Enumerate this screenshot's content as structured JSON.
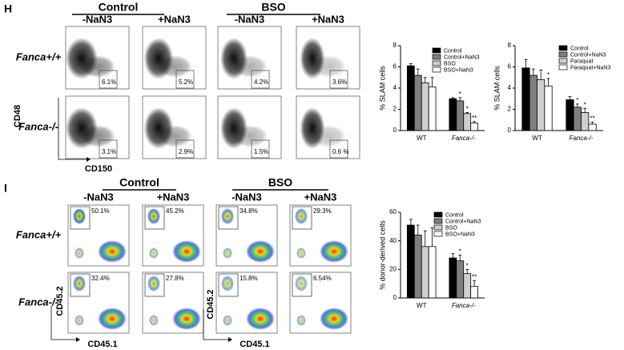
{
  "panel_h": {
    "label": "H",
    "groups": [
      "Control",
      "BSO"
    ],
    "conditions": [
      "-NaN3",
      "+NaN3",
      "-NaN3",
      "+NaN3"
    ],
    "rows": [
      "Fanca+/+",
      "Fanca-/-"
    ],
    "percents": [
      [
        "6.1%",
        "5.2%",
        "4.2%",
        "3.6%"
      ],
      [
        "3.1%",
        "2.9%",
        "1.5%",
        "0.6 %"
      ]
    ],
    "x_axis": "CD150",
    "y_axis": "CD48"
  },
  "panel_i": {
    "label": "I",
    "groups": [
      "Control",
      "BSO"
    ],
    "conditions": [
      "-NaN3",
      "+NaN3",
      "-NaN3",
      "+NaN3"
    ],
    "rows": [
      "Fanca+/+",
      "Fanca-/-"
    ],
    "percents": [
      [
        "50.1%",
        "45.2%",
        "34.8%",
        "29.3%"
      ],
      [
        "32.4%",
        "27.8%",
        "15.8%",
        "6.54%"
      ]
    ],
    "x_axis": "CD45.1",
    "y_axis": "CD45.2"
  },
  "chart_data": [
    {
      "type": "bar",
      "y_label": "% SLAM cells",
      "categories": [
        "WT",
        "Fanca-/-"
      ],
      "ylim": [
        0,
        8
      ],
      "yticks": [
        0,
        2,
        4,
        6,
        8
      ],
      "series": [
        {
          "name": "Control",
          "color": "#000000",
          "values": [
            6.1,
            3.0
          ],
          "errors": [
            0.2,
            0.1
          ],
          "stars": [
            null,
            null
          ]
        },
        {
          "name": "Control+NaN3",
          "color": "#7f7f7f",
          "values": [
            5.2,
            2.8
          ],
          "errors": [
            0.6,
            0.3
          ],
          "stars": [
            null,
            "*"
          ]
        },
        {
          "name": "BSO",
          "color": "#cfcfcf",
          "values": [
            4.5,
            1.6
          ],
          "errors": [
            0.5,
            0.1
          ],
          "stars": [
            null,
            "*"
          ]
        },
        {
          "name": "BSO+NaN3",
          "color": "#ffffff",
          "values": [
            4.1,
            0.7
          ],
          "errors": [
            0.9,
            0.15
          ],
          "stars": [
            null,
            "**"
          ]
        }
      ]
    },
    {
      "type": "bar",
      "y_label": "% SLAM cells",
      "categories": [
        "WT",
        "Fanca-/-"
      ],
      "ylim": [
        0,
        8
      ],
      "yticks": [
        0,
        2,
        4,
        6,
        8
      ],
      "series": [
        {
          "name": "Control",
          "color": "#000000",
          "values": [
            5.9,
            2.9
          ],
          "errors": [
            0.8,
            0.3
          ],
          "stars": [
            null,
            null
          ]
        },
        {
          "name": "Control+NaN3",
          "color": "#7f7f7f",
          "values": [
            5.2,
            2.2
          ],
          "errors": [
            0.6,
            0.3
          ],
          "stars": [
            null,
            "*"
          ]
        },
        {
          "name": "Paraquat",
          "color": "#cfcfcf",
          "values": [
            4.8,
            1.7
          ],
          "errors": [
            0.9,
            0.4
          ],
          "stars": [
            null,
            "*"
          ]
        },
        {
          "name": "Paraquat+NaN3",
          "color": "#ffffff",
          "values": [
            4.2,
            0.6
          ],
          "errors": [
            0.7,
            0.2
          ],
          "stars": [
            "*",
            "**"
          ]
        }
      ]
    },
    {
      "type": "bar",
      "y_label": "% donor-derived cells",
      "categories": [
        "WT",
        "Fanca-/-"
      ],
      "ylim": [
        0,
        60
      ],
      "yticks": [
        0,
        20,
        40,
        60
      ],
      "series": [
        {
          "name": "Control",
          "color": "#000000",
          "values": [
            51,
            28
          ],
          "errors": [
            4,
            3
          ],
          "stars": [
            null,
            null
          ]
        },
        {
          "name": "Control+NaN3",
          "color": "#7f7f7f",
          "values": [
            44,
            26
          ],
          "errors": [
            7,
            4
          ],
          "stars": [
            null,
            "*"
          ]
        },
        {
          "name": "BSO",
          "color": "#cfcfcf",
          "values": [
            36,
            17
          ],
          "errors": [
            11,
            3
          ],
          "stars": [
            null,
            "*"
          ]
        },
        {
          "name": "BSO+NaN3",
          "color": "#ffffff",
          "values": [
            36,
            8
          ],
          "errors": [
            13,
            4
          ],
          "stars": [
            null,
            "**"
          ]
        }
      ]
    }
  ]
}
